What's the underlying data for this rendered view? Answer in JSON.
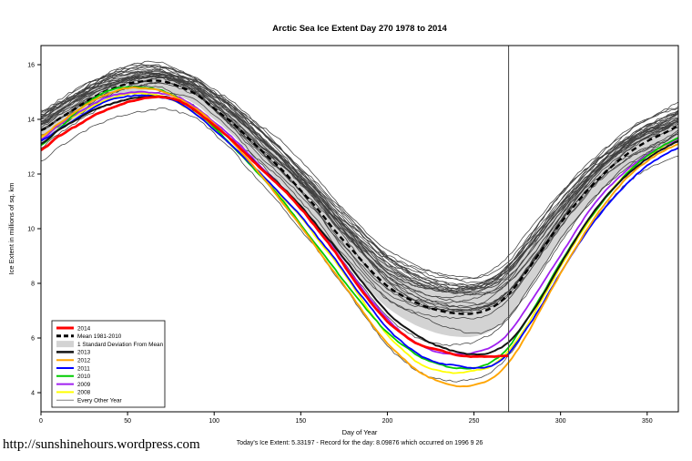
{
  "page": {
    "title": "Arctic Sea Ice Extent Day 270 1978 to 2014",
    "xlabel": "Day of Year",
    "caption": "Today's Ice Extent: 5.33197  - Record for the day: 8.09876 which occurred on 1996 9 26",
    "watermark": "http://sunshinehours.wordpress.com"
  },
  "chart_data": {
    "type": "line",
    "title": "Arctic Sea Ice Extent Day 270 1978 to 2014",
    "xlabel": "Day of Year",
    "ylabel": "Ice Extent in millions of sq. km",
    "xlim": [
      0,
      368
    ],
    "ylim": [
      3.3,
      16.7
    ],
    "x_ticks": [
      0,
      50,
      100,
      150,
      200,
      250,
      300,
      350
    ],
    "y_ticks": [
      4,
      6,
      8,
      10,
      12,
      14,
      16
    ],
    "marker_day": 270,
    "sample_step_days": 10,
    "grid": false,
    "legend_position": "lower-left",
    "mean_series": {
      "name": "Mean 1981-2010",
      "color": "#000000",
      "dash": true,
      "width": 2.4,
      "values": [
        13.6,
        14.0,
        14.4,
        14.8,
        15.1,
        15.3,
        15.4,
        15.4,
        15.2,
        14.9,
        14.4,
        13.9,
        13.3,
        12.7,
        12.1,
        11.4,
        10.7,
        9.9,
        9.2,
        8.5,
        7.9,
        7.5,
        7.2,
        7.0,
        6.9,
        6.9,
        7.1,
        7.6,
        8.4,
        9.3,
        10.2,
        11.0,
        11.7,
        12.3,
        12.8,
        13.2,
        13.5,
        13.8
      ]
    },
    "std_band": {
      "name": "1 Standard Deviation From Mean",
      "color": "#D3D3D3",
      "sd_base": 0.35,
      "sd_extra": 0.5
    },
    "year_series": [
      {
        "name": "2008",
        "color": "#FFFF00",
        "width": 1.8,
        "values": [
          13.2,
          13.7,
          14.1,
          14.5,
          14.8,
          15.0,
          15.0,
          14.9,
          14.6,
          14.2,
          13.7,
          13.1,
          12.5,
          11.8,
          11.1,
          10.4,
          9.5,
          8.7,
          7.8,
          6.9,
          6.1,
          5.5,
          5.0,
          4.8,
          4.7,
          4.8,
          5.0,
          5.6,
          6.5,
          7.6,
          8.7,
          9.7,
          10.6,
          11.4,
          12.1,
          12.6,
          13.0,
          13.3
        ]
      },
      {
        "name": "2009",
        "color": "#A020F0",
        "width": 1.8,
        "values": [
          13.3,
          13.8,
          14.2,
          14.6,
          14.9,
          15.0,
          15.0,
          14.9,
          14.7,
          14.3,
          13.8,
          13.3,
          12.7,
          12.1,
          11.5,
          10.8,
          10.0,
          9.2,
          8.3,
          7.5,
          6.8,
          6.2,
          5.8,
          5.5,
          5.4,
          5.4,
          5.6,
          6.1,
          7.0,
          8.0,
          9.0,
          10.0,
          10.9,
          11.6,
          12.2,
          12.7,
          13.1,
          13.4
        ]
      },
      {
        "name": "2010",
        "color": "#00CC00",
        "width": 1.8,
        "values": [
          13.1,
          13.7,
          14.3,
          14.8,
          15.1,
          15.2,
          15.2,
          15.1,
          14.8,
          14.3,
          13.7,
          13.0,
          12.3,
          11.6,
          10.9,
          10.1,
          9.3,
          8.5,
          7.7,
          6.9,
          6.2,
          5.7,
          5.3,
          5.1,
          5.0,
          5.0,
          5.2,
          5.7,
          6.6,
          7.6,
          8.7,
          9.7,
          10.6,
          11.4,
          12.1,
          12.6,
          13.0,
          13.3
        ]
      },
      {
        "name": "2011",
        "color": "#0000FF",
        "width": 1.8,
        "values": [
          13.2,
          13.6,
          14.0,
          14.4,
          14.7,
          14.8,
          14.8,
          14.7,
          14.5,
          14.1,
          13.6,
          13.1,
          12.5,
          11.9,
          11.2,
          10.5,
          9.7,
          8.9,
          8.0,
          7.2,
          6.4,
          5.8,
          5.3,
          5.0,
          4.9,
          4.8,
          4.9,
          5.4,
          6.3,
          7.3,
          8.4,
          9.4,
          10.3,
          11.1,
          11.8,
          12.4,
          12.8,
          13.1
        ]
      },
      {
        "name": "2012",
        "color": "#FFA500",
        "width": 1.9,
        "values": [
          13.4,
          13.8,
          14.2,
          14.6,
          14.9,
          15.1,
          15.1,
          15.0,
          14.7,
          14.3,
          13.8,
          13.2,
          12.5,
          11.8,
          11.0,
          10.2,
          9.3,
          8.4,
          7.5,
          6.6,
          5.8,
          5.2,
          4.7,
          4.4,
          4.2,
          4.2,
          4.4,
          5.0,
          6.0,
          7.2,
          8.4,
          9.5,
          10.5,
          11.3,
          12.0,
          12.5,
          12.9,
          13.2
        ]
      },
      {
        "name": "2013",
        "color": "#141414",
        "width": 2.0,
        "values": [
          13.0,
          13.5,
          13.9,
          14.3,
          14.6,
          14.8,
          14.9,
          14.9,
          14.7,
          14.3,
          13.8,
          13.3,
          12.7,
          12.1,
          11.5,
          10.8,
          10.0,
          9.2,
          8.4,
          7.6,
          6.9,
          6.4,
          6.0,
          5.7,
          5.5,
          5.4,
          5.5,
          5.9,
          6.7,
          7.7,
          8.8,
          9.8,
          10.7,
          11.4,
          12.0,
          12.5,
          12.9,
          13.2
        ]
      },
      {
        "name": "2014",
        "color": "#FF0000",
        "width": 2.7,
        "end_day": 270,
        "values": [
          12.9,
          13.4,
          13.8,
          14.2,
          14.5,
          14.7,
          14.8,
          14.8,
          14.6,
          14.2,
          13.7,
          13.2,
          12.6,
          12.0,
          11.4,
          10.7,
          9.9,
          9.1,
          8.2,
          7.4,
          6.7,
          6.2,
          5.8,
          5.6,
          5.4,
          5.3,
          5.3,
          5.33
        ]
      }
    ],
    "background_years": {
      "name": "Every Other Year",
      "color": "#3F3F3F",
      "width": 0.75,
      "years": [
        1978,
        1979,
        1980,
        1981,
        1982,
        1983,
        1984,
        1985,
        1986,
        1987,
        1988,
        1989,
        1990,
        1991,
        1992,
        1993,
        1994,
        1995,
        1996,
        1997,
        1998,
        1999,
        2000,
        2001,
        2002,
        2003,
        2004,
        2005,
        2006,
        2007
      ],
      "offsets": [
        0.85,
        0.7,
        0.9,
        0.75,
        0.6,
        0.8,
        0.55,
        0.6,
        0.7,
        0.65,
        0.6,
        0.4,
        0.3,
        0.35,
        0.55,
        0.45,
        0.5,
        0.1,
        0.55,
        0.3,
        0.15,
        0.2,
        0.1,
        0.15,
        -0.1,
        0.0,
        -0.15,
        -0.45,
        -0.7,
        -1.55
      ]
    },
    "legend": {
      "entries": [
        {
          "label": "2014",
          "color": "#FF0000",
          "width": 3,
          "dash": false
        },
        {
          "label": "Mean 1981-2010",
          "color": "#000000",
          "width": 3,
          "dash": true
        },
        {
          "label": "1 Standard Deviation From Mean",
          "color": "#D3D3D3",
          "width": 7,
          "dash": false
        },
        {
          "label": "2013",
          "color": "#141414",
          "width": 2.5,
          "dash": false
        },
        {
          "label": "2012",
          "color": "#FFA500",
          "width": 2,
          "dash": false
        },
        {
          "label": "2011",
          "color": "#0000FF",
          "width": 2,
          "dash": false
        },
        {
          "label": "2010",
          "color": "#00CC00",
          "width": 2,
          "dash": false
        },
        {
          "label": "2009",
          "color": "#A020F0",
          "width": 2,
          "dash": false
        },
        {
          "label": "2008",
          "color": "#FFFF00",
          "width": 2,
          "dash": false
        },
        {
          "label": "Every Other Year",
          "color": "#808080",
          "width": 1,
          "dash": false
        }
      ]
    }
  }
}
